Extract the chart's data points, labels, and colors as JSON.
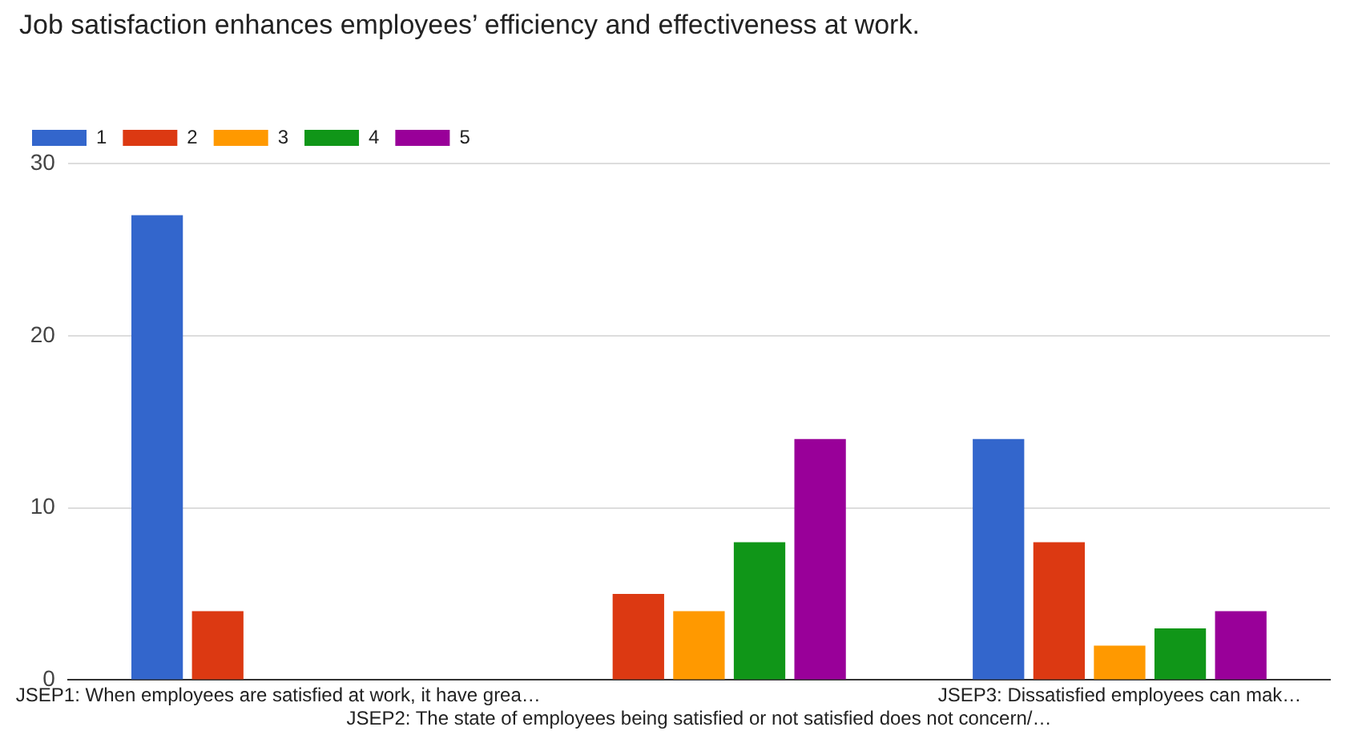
{
  "chart_data": {
    "type": "bar",
    "title": "Job satisfaction enhances employees’ efficiency and effectiveness at work.",
    "categories": [
      "JSEP1: When employees are satisfied at work, it have grea…",
      "JSEP2: The state of employees being satisfied or not satisfied does not concern/…",
      "JSEP3: Dissatisfied employees can mak…"
    ],
    "series": [
      {
        "name": "1",
        "color": "#3366cc",
        "values": [
          27,
          0,
          14
        ]
      },
      {
        "name": "2",
        "color": "#dc3912",
        "values": [
          4,
          5,
          8
        ]
      },
      {
        "name": "3",
        "color": "#ff9900",
        "values": [
          0,
          4,
          2
        ]
      },
      {
        "name": "4",
        "color": "#109618",
        "values": [
          0,
          8,
          3
        ]
      },
      {
        "name": "5",
        "color": "#990099",
        "values": [
          0,
          14,
          4
        ]
      }
    ],
    "ylim": [
      0,
      30
    ],
    "yticks": [
      0,
      10,
      20,
      30
    ],
    "grid": "y",
    "legend": "top left"
  }
}
